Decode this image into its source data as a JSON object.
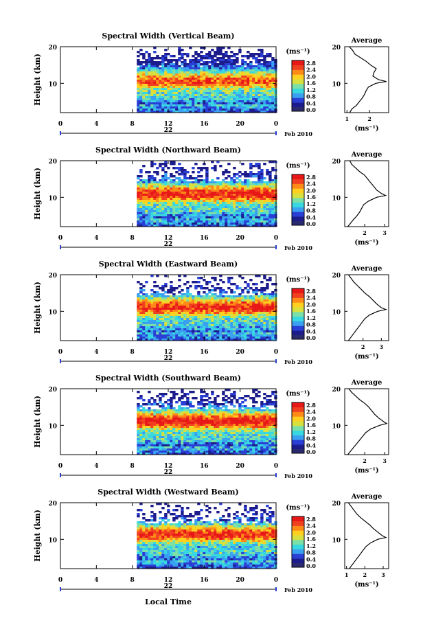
{
  "figure": {
    "xlabel": "Local Time",
    "ylabel": "Height (km)",
    "date_label": "Feb 2010",
    "day_label": "22",
    "unit_label": "(ms⁻¹)",
    "avg_title": "Average",
    "avg_xlabel": "(ms⁻¹)",
    "xticks": [
      "0",
      "4",
      "8",
      "12",
      "16",
      "20",
      "0"
    ],
    "yticks": [
      "20",
      "10"
    ],
    "colorbar_ticks": [
      "2.8",
      "2.4",
      "2.0",
      "1.6",
      "1.2",
      "0.8",
      "0.4",
      "0.0"
    ]
  },
  "colors": {
    "scale": [
      "#1c1c8c",
      "#2a3fd6",
      "#3aa0f0",
      "#38d8e0",
      "#7ae0a8",
      "#d8e040",
      "#ffd020",
      "#ff8a18",
      "#f04020",
      "#e81818"
    ],
    "colorbar_bottom": "#2a2a6e",
    "line": "#000000"
  },
  "chart_data": [
    {
      "type": "heatmap",
      "title": "Spectral Width (Vertical Beam)",
      "x_range": [
        0,
        24
      ],
      "y_range": [
        2,
        20
      ],
      "value_range": [
        0.0,
        2.8
      ],
      "data_start_hour": 8.5,
      "core_height_km": 10.6,
      "core_strength": 0.82,
      "top_fill": 0.9,
      "average": {
        "type": "line",
        "xlim": [
          0.9,
          2.85
        ],
        "xticks": [
          "1",
          "2"
        ],
        "profile": [
          [
            2,
            1.12
          ],
          [
            3,
            1.22
          ],
          [
            4,
            1.42
          ],
          [
            5,
            1.55
          ],
          [
            6,
            1.68
          ],
          [
            7,
            1.78
          ],
          [
            8,
            1.85
          ],
          [
            9,
            1.95
          ],
          [
            10,
            2.28
          ],
          [
            10.5,
            2.75
          ],
          [
            11,
            2.4
          ],
          [
            12,
            2.15
          ],
          [
            13,
            2.2
          ],
          [
            14,
            2.3
          ],
          [
            15,
            2.05
          ],
          [
            16,
            1.85
          ],
          [
            17,
            1.6
          ],
          [
            18,
            1.35
          ],
          [
            19,
            1.25
          ],
          [
            20,
            1.1
          ]
        ]
      }
    },
    {
      "type": "heatmap",
      "title": "Spectral Width (Northward Beam)",
      "x_range": [
        0,
        24
      ],
      "y_range": [
        2,
        20
      ],
      "value_range": [
        0.0,
        2.8
      ],
      "data_start_hour": 8.5,
      "core_height_km": 10.8,
      "core_strength": 0.92,
      "top_fill": 0.62,
      "average": {
        "type": "line",
        "xlim": [
          1.0,
          3.2
        ],
        "xticks": [
          "2",
          "3"
        ],
        "profile": [
          [
            2,
            1.15
          ],
          [
            3,
            1.3
          ],
          [
            4,
            1.45
          ],
          [
            5,
            1.62
          ],
          [
            6,
            1.75
          ],
          [
            7,
            1.85
          ],
          [
            8,
            1.95
          ],
          [
            9,
            2.2
          ],
          [
            10,
            2.6
          ],
          [
            10.5,
            3.05
          ],
          [
            11,
            2.85
          ],
          [
            12,
            2.6
          ],
          [
            13,
            2.45
          ],
          [
            14,
            2.3
          ],
          [
            15,
            2.15
          ],
          [
            16,
            2.0
          ],
          [
            17,
            1.75
          ],
          [
            18,
            1.55
          ],
          [
            19,
            1.35
          ],
          [
            20,
            1.25
          ]
        ]
      }
    },
    {
      "type": "heatmap",
      "title": "Spectral Width (Eastward Beam)",
      "x_range": [
        0,
        24
      ],
      "y_range": [
        2,
        20
      ],
      "value_range": [
        0.0,
        2.8
      ],
      "data_start_hour": 8.5,
      "core_height_km": 11.0,
      "core_strength": 0.92,
      "top_fill": 0.55,
      "average": {
        "type": "line",
        "xlim": [
          1.0,
          3.4
        ],
        "xticks": [
          "2",
          "3"
        ],
        "profile": [
          [
            2,
            1.2
          ],
          [
            3,
            1.35
          ],
          [
            4,
            1.5
          ],
          [
            5,
            1.65
          ],
          [
            6,
            1.8
          ],
          [
            7,
            1.95
          ],
          [
            8,
            2.1
          ],
          [
            9,
            2.35
          ],
          [
            10,
            2.8
          ],
          [
            10.5,
            3.25
          ],
          [
            11,
            3.0
          ],
          [
            12,
            2.75
          ],
          [
            13,
            2.55
          ],
          [
            14,
            2.35
          ],
          [
            15,
            2.1
          ],
          [
            16,
            1.9
          ],
          [
            17,
            1.7
          ],
          [
            18,
            1.5
          ],
          [
            19,
            1.35
          ],
          [
            20,
            1.2
          ]
        ]
      }
    },
    {
      "type": "heatmap",
      "title": "Spectral Width (Southward Beam)",
      "x_range": [
        0,
        24
      ],
      "y_range": [
        2,
        20
      ],
      "value_range": [
        0.0,
        2.8
      ],
      "data_start_hour": 8.5,
      "core_height_km": 11.0,
      "core_strength": 0.95,
      "top_fill": 0.6,
      "average": {
        "type": "line",
        "xlim": [
          1.0,
          3.2
        ],
        "xticks": [
          "2",
          "3"
        ],
        "profile": [
          [
            2,
            1.15
          ],
          [
            3,
            1.3
          ],
          [
            4,
            1.45
          ],
          [
            5,
            1.6
          ],
          [
            6,
            1.75
          ],
          [
            7,
            1.9
          ],
          [
            8,
            2.05
          ],
          [
            9,
            2.3
          ],
          [
            10,
            2.75
          ],
          [
            10.5,
            3.1
          ],
          [
            11,
            2.95
          ],
          [
            12,
            2.7
          ],
          [
            13,
            2.5
          ],
          [
            14,
            2.35
          ],
          [
            15,
            2.2
          ],
          [
            16,
            2.0
          ],
          [
            17,
            1.75
          ],
          [
            18,
            1.55
          ],
          [
            19,
            1.35
          ],
          [
            20,
            1.2
          ]
        ]
      }
    },
    {
      "type": "heatmap",
      "title": "Spectral Width (Westward Beam)",
      "x_range": [
        0,
        24
      ],
      "y_range": [
        2,
        20
      ],
      "value_range": [
        0.0,
        2.8
      ],
      "data_start_hour": 8.5,
      "core_height_km": 11.2,
      "core_strength": 0.9,
      "top_fill": 0.5,
      "average": {
        "type": "line",
        "xlim": [
          0.9,
          3.3
        ],
        "xticks": [
          "1",
          "2",
          "3"
        ],
        "profile": [
          [
            2,
            1.15
          ],
          [
            3,
            1.3
          ],
          [
            4,
            1.45
          ],
          [
            5,
            1.6
          ],
          [
            6,
            1.75
          ],
          [
            7,
            1.9
          ],
          [
            8,
            2.05
          ],
          [
            9,
            2.3
          ],
          [
            10,
            2.7
          ],
          [
            10.5,
            3.15
          ],
          [
            11,
            2.95
          ],
          [
            12,
            2.7
          ],
          [
            13,
            2.45
          ],
          [
            14,
            2.25
          ],
          [
            15,
            2.0
          ],
          [
            16,
            1.75
          ],
          [
            17,
            1.55
          ],
          [
            18,
            1.4
          ],
          [
            19,
            1.25
          ],
          [
            20,
            1.1
          ]
        ]
      }
    }
  ]
}
